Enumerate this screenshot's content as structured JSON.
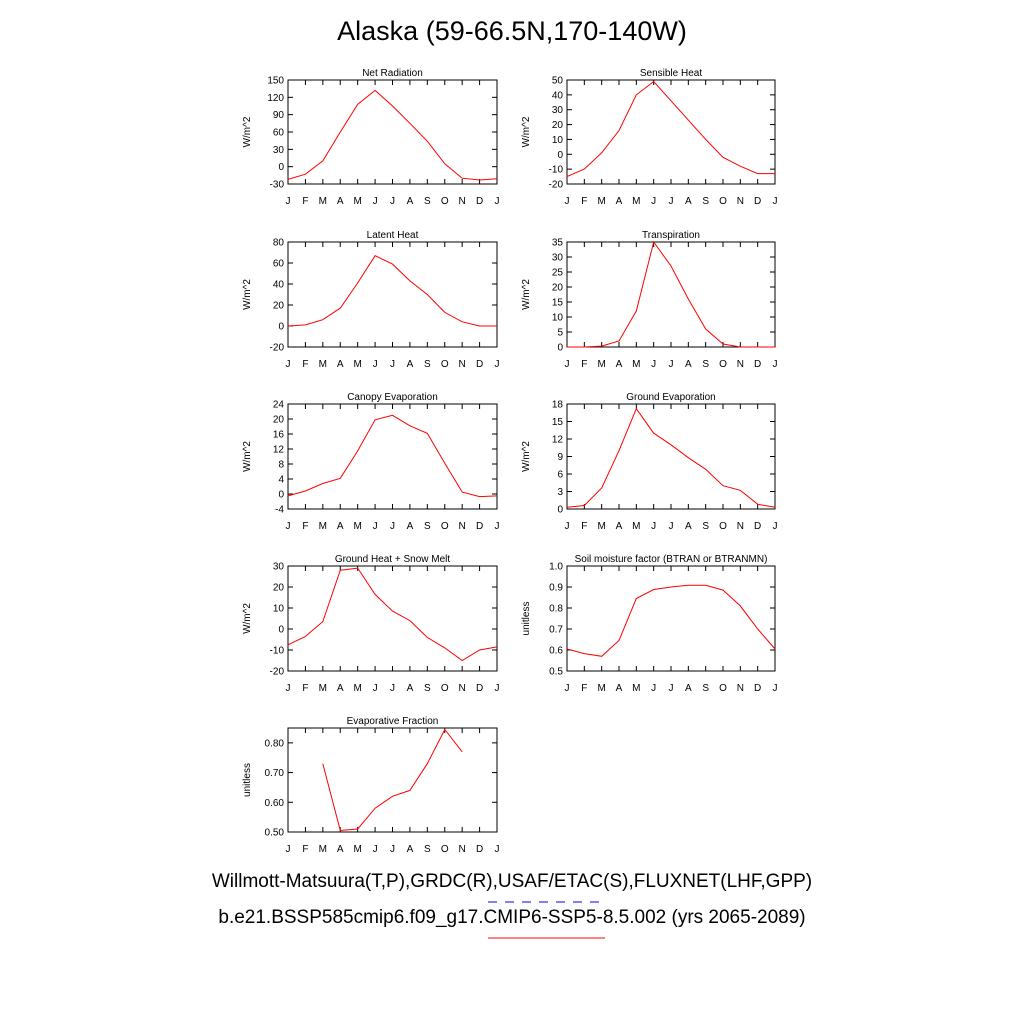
{
  "title": "Alaska (59-66.5N,170-140W)",
  "month_labels": [
    "J",
    "F",
    "M",
    "A",
    "M",
    "J",
    "J",
    "A",
    "S",
    "O",
    "N",
    "D",
    "J"
  ],
  "colors": {
    "model": "#ff0000",
    "obs": "#0000ff"
  },
  "legend": {
    "obs_text": "Willmott-Matsuura(T,P),GRDC(R),USAF/ETAC(S),FLUXNET(LHF,GPP)",
    "model_text": "b.e21.BSSP585cmip6.f09_g17.CMIP6-SSP5-8.5.002 (yrs 2065-2089)",
    "obs_style": "dashed",
    "model_style": "solid"
  },
  "chart_data": [
    {
      "type": "line",
      "title": "Net Radiation",
      "ylabel": "W/m^2",
      "ylim": [
        -30,
        150
      ],
      "yticks": [
        "150",
        "120",
        "90",
        "60",
        "30",
        "0",
        "-30"
      ],
      "x": [
        1,
        2,
        3,
        4,
        5,
        6,
        7,
        8,
        9,
        10,
        11,
        12,
        13
      ],
      "series": [
        {
          "values": [
            -22,
            -13,
            10,
            60,
            108,
            132,
            105,
            75,
            44,
            5,
            -20,
            -23,
            -21
          ]
        }
      ]
    },
    {
      "type": "line",
      "title": "Sensible Heat",
      "ylabel": "W/m^2",
      "ylim": [
        -20,
        50
      ],
      "yticks": [
        "50",
        "40",
        "30",
        "20",
        "10",
        "0",
        "-10",
        "-20"
      ],
      "x": [
        1,
        2,
        3,
        4,
        5,
        6,
        7,
        8,
        9,
        10,
        11,
        12,
        13
      ],
      "series": [
        {
          "values": [
            -15,
            -10,
            1,
            16,
            40,
            49,
            36,
            23,
            10,
            -2,
            -8,
            -13,
            -13
          ]
        }
      ]
    },
    {
      "type": "line",
      "title": "Latent Heat",
      "ylabel": "W/m^2",
      "ylim": [
        -20,
        80
      ],
      "yticks": [
        "80",
        "60",
        "40",
        "20",
        "0",
        "-20"
      ],
      "x": [
        1,
        2,
        3,
        4,
        5,
        6,
        7,
        8,
        9,
        10,
        11,
        12,
        13
      ],
      "series": [
        {
          "values": [
            0,
            1,
            6,
            17,
            41,
            67,
            59,
            43,
            30,
            13,
            4,
            0,
            0
          ]
        }
      ]
    },
    {
      "type": "line",
      "title": "Transpiration",
      "ylabel": "W/m^2",
      "ylim": [
        0,
        35
      ],
      "yticks": [
        "35",
        "30",
        "25",
        "20",
        "15",
        "10",
        "5",
        "0"
      ],
      "x": [
        1,
        2,
        3,
        4,
        5,
        6,
        7,
        8,
        9,
        10,
        11,
        12,
        13
      ],
      "series": [
        {
          "values": [
            0,
            0,
            0.3,
            2,
            12,
            35,
            27,
            16,
            6,
            1,
            0,
            0,
            0
          ]
        }
      ]
    },
    {
      "type": "line",
      "title": "Canopy Evaporation",
      "ylabel": "W/m^2",
      "ylim": [
        -4,
        24
      ],
      "yticks": [
        "24",
        "20",
        "16",
        "12",
        "8",
        "4",
        "0",
        "-4"
      ],
      "x": [
        1,
        2,
        3,
        4,
        5,
        6,
        7,
        8,
        9,
        10,
        11,
        12,
        13
      ],
      "series": [
        {
          "values": [
            -0.5,
            0.8,
            2.8,
            4.2,
            11.5,
            19.8,
            21,
            18.2,
            16.2,
            8.2,
            0.5,
            -0.7,
            -0.5
          ]
        }
      ]
    },
    {
      "type": "line",
      "title": "Ground Evaporation",
      "ylabel": "W/m^2",
      "ylim": [
        0,
        18
      ],
      "yticks": [
        "18",
        "15",
        "12",
        "9",
        "6",
        "3",
        "0"
      ],
      "x": [
        1,
        2,
        3,
        4,
        5,
        6,
        7,
        8,
        9,
        10,
        11,
        12,
        13
      ],
      "series": [
        {
          "values": [
            0.3,
            0.6,
            3.6,
            10,
            17.2,
            13,
            11,
            8.8,
            6.8,
            4,
            3.2,
            0.8,
            0.3
          ]
        }
      ]
    },
    {
      "type": "line",
      "title": "Ground Heat + Snow Melt",
      "ylabel": "W/m^2",
      "ylim": [
        -20,
        30
      ],
      "yticks": [
        "30",
        "20",
        "10",
        "0",
        "-10",
        "-20"
      ],
      "x": [
        1,
        2,
        3,
        4,
        5,
        6,
        7,
        8,
        9,
        10,
        11,
        12,
        13
      ],
      "series": [
        {
          "values": [
            -7.5,
            -3.5,
            3.5,
            28,
            29,
            16.5,
            8.5,
            4,
            -4,
            -9,
            -15,
            -10,
            -8.5
          ]
        }
      ]
    },
    {
      "type": "line",
      "title": "Soil moisture factor (BTRAN or BTRANMN)",
      "ylabel": "unitless",
      "ylim": [
        0.5,
        1.0
      ],
      "yticks": [
        "1.0",
        "0.9",
        "0.8",
        "0.7",
        "0.6",
        "0.5"
      ],
      "x": [
        1,
        2,
        3,
        4,
        5,
        6,
        7,
        8,
        9,
        10,
        11,
        12,
        13
      ],
      "series": [
        {
          "values": [
            0.605,
            0.583,
            0.57,
            0.645,
            0.845,
            0.888,
            0.9,
            0.908,
            0.908,
            0.885,
            0.81,
            0.7,
            0.605
          ]
        }
      ]
    },
    {
      "type": "line",
      "title": "Evaporative Fraction",
      "ylabel": "unitless",
      "ylim": [
        0.5,
        0.85
      ],
      "yticks": [
        "0.80",
        "0.70",
        "0.60",
        "0.50"
      ],
      "x": [
        1,
        2,
        3,
        4,
        5,
        6,
        7,
        8,
        9,
        10,
        11,
        12,
        13
      ],
      "series": [
        {
          "values": [
            null,
            null,
            0.73,
            0.505,
            0.51,
            0.58,
            0.62,
            0.64,
            0.73,
            0.845,
            0.77,
            null,
            null
          ]
        }
      ]
    }
  ]
}
